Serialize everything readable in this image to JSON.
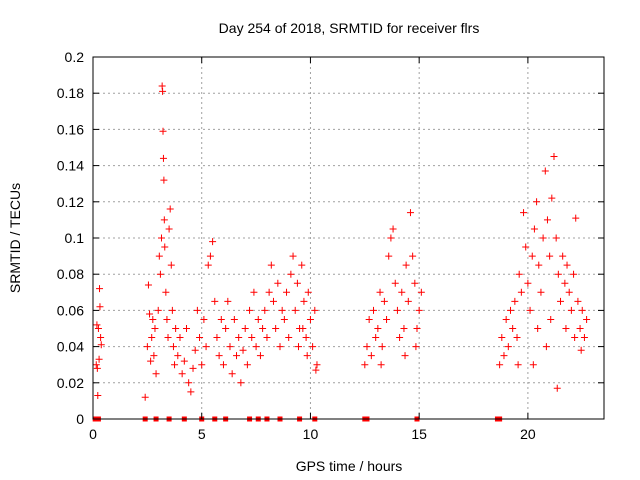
{
  "chart_data": {
    "type": "scatter",
    "title": "Day 254 of 2018, SRMTID for receiver flrs",
    "xlabel": "GPS time / hours",
    "ylabel": "SRMTID / TECUs",
    "xlim": [
      0,
      23.5
    ],
    "ylim": [
      0,
      0.2
    ],
    "x_ticks": [
      0,
      5,
      10,
      15,
      20
    ],
    "x_tick_labels": [
      "0",
      "5",
      "10",
      "15",
      "20"
    ],
    "y_ticks": [
      0,
      0.02,
      0.04,
      0.06,
      0.08,
      0.1,
      0.12,
      0.14,
      0.16,
      0.18,
      0.2
    ],
    "y_tick_labels": [
      "0",
      "0.02",
      "0.04",
      "0.06",
      "0.08",
      "0.1",
      "0.12",
      "0.14",
      "0.16",
      "0.18",
      "0.2"
    ],
    "grid": true,
    "marker": "+",
    "color": "#ff0000",
    "zero_markers_x": [
      0.1,
      0.25,
      2.4,
      2.9,
      3.5,
      4.2,
      5.0,
      5.6,
      6.1,
      7.2,
      7.6,
      8.0,
      8.6,
      9.5,
      10.2,
      12.5,
      12.6,
      14.9,
      18.6,
      18.7
    ],
    "series": [
      {
        "name": "SRMTID",
        "points": [
          [
            0.15,
            0.03
          ],
          [
            0.2,
            0.028
          ],
          [
            0.25,
            0.05
          ],
          [
            0.3,
            0.072
          ],
          [
            0.32,
            0.062
          ],
          [
            0.35,
            0.045
          ],
          [
            0.38,
            0.041
          ],
          [
            0.22,
            0.013
          ],
          [
            0.28,
            0.033
          ],
          [
            0.18,
            0.052
          ],
          [
            2.4,
            0.012
          ],
          [
            2.5,
            0.04
          ],
          [
            2.55,
            0.074
          ],
          [
            2.6,
            0.058
          ],
          [
            2.65,
            0.032
          ],
          [
            2.7,
            0.045
          ],
          [
            2.75,
            0.055
          ],
          [
            2.8,
            0.035
          ],
          [
            2.85,
            0.05
          ],
          [
            2.9,
            0.025
          ],
          [
            3.0,
            0.06
          ],
          [
            3.05,
            0.09
          ],
          [
            3.1,
            0.08
          ],
          [
            3.15,
            0.1
          ],
          [
            3.18,
            0.184
          ],
          [
            3.2,
            0.181
          ],
          [
            3.22,
            0.159
          ],
          [
            3.24,
            0.144
          ],
          [
            3.26,
            0.132
          ],
          [
            3.28,
            0.11
          ],
          [
            3.3,
            0.095
          ],
          [
            3.35,
            0.07
          ],
          [
            3.4,
            0.055
          ],
          [
            3.45,
            0.045
          ],
          [
            3.5,
            0.105
          ],
          [
            3.55,
            0.116
          ],
          [
            3.6,
            0.085
          ],
          [
            3.65,
            0.06
          ],
          [
            3.7,
            0.04
          ],
          [
            3.75,
            0.03
          ],
          [
            3.8,
            0.05
          ],
          [
            3.9,
            0.035
          ],
          [
            4.0,
            0.045
          ],
          [
            4.1,
            0.025
          ],
          [
            4.2,
            0.032
          ],
          [
            4.3,
            0.05
          ],
          [
            4.4,
            0.02
          ],
          [
            4.5,
            0.015
          ],
          [
            4.6,
            0.028
          ],
          [
            4.7,
            0.038
          ],
          [
            4.8,
            0.06
          ],
          [
            4.9,
            0.045
          ],
          [
            5.0,
            0.03
          ],
          [
            5.1,
            0.055
          ],
          [
            5.2,
            0.04
          ],
          [
            5.3,
            0.085
          ],
          [
            5.4,
            0.09
          ],
          [
            5.5,
            0.098
          ],
          [
            5.6,
            0.065
          ],
          [
            5.7,
            0.045
          ],
          [
            5.8,
            0.035
          ],
          [
            5.9,
            0.055
          ],
          [
            6.0,
            0.03
          ],
          [
            6.1,
            0.05
          ],
          [
            6.2,
            0.065
          ],
          [
            6.3,
            0.04
          ],
          [
            6.4,
            0.025
          ],
          [
            6.5,
            0.055
          ],
          [
            6.6,
            0.035
          ],
          [
            6.7,
            0.045
          ],
          [
            6.8,
            0.02
          ],
          [
            6.9,
            0.038
          ],
          [
            7.0,
            0.05
          ],
          [
            7.1,
            0.03
          ],
          [
            7.2,
            0.06
          ],
          [
            7.3,
            0.045
          ],
          [
            7.4,
            0.07
          ],
          [
            7.5,
            0.04
          ],
          [
            7.6,
            0.055
          ],
          [
            7.7,
            0.035
          ],
          [
            7.8,
            0.05
          ],
          [
            7.9,
            0.06
          ],
          [
            8.0,
            0.045
          ],
          [
            8.1,
            0.07
          ],
          [
            8.2,
            0.085
          ],
          [
            8.3,
            0.065
          ],
          [
            8.4,
            0.05
          ],
          [
            8.5,
            0.075
          ],
          [
            8.6,
            0.04
          ],
          [
            8.7,
            0.06
          ],
          [
            8.8,
            0.055
          ],
          [
            8.9,
            0.07
          ],
          [
            9.0,
            0.045
          ],
          [
            9.1,
            0.08
          ],
          [
            9.2,
            0.09
          ],
          [
            9.3,
            0.06
          ],
          [
            9.4,
            0.075
          ],
          [
            9.5,
            0.05
          ],
          [
            9.6,
            0.085
          ],
          [
            9.7,
            0.065
          ],
          [
            9.8,
            0.045
          ],
          [
            9.9,
            0.07
          ],
          [
            10.0,
            0.055
          ],
          [
            10.1,
            0.04
          ],
          [
            10.2,
            0.06
          ],
          [
            10.3,
            0.03
          ],
          [
            10.25,
            0.027
          ],
          [
            9.85,
            0.035
          ],
          [
            9.65,
            0.05
          ],
          [
            9.45,
            0.04
          ],
          [
            12.5,
            0.03
          ],
          [
            12.6,
            0.04
          ],
          [
            12.7,
            0.055
          ],
          [
            12.8,
            0.035
          ],
          [
            12.9,
            0.06
          ],
          [
            13.0,
            0.045
          ],
          [
            13.1,
            0.05
          ],
          [
            13.2,
            0.07
          ],
          [
            13.3,
            0.04
          ],
          [
            13.4,
            0.065
          ],
          [
            13.5,
            0.055
          ],
          [
            13.6,
            0.09
          ],
          [
            13.7,
            0.1
          ],
          [
            13.8,
            0.105
          ],
          [
            13.9,
            0.075
          ],
          [
            14.0,
            0.06
          ],
          [
            14.1,
            0.045
          ],
          [
            14.2,
            0.07
          ],
          [
            14.3,
            0.05
          ],
          [
            14.4,
            0.085
          ],
          [
            14.5,
            0.065
          ],
          [
            14.6,
            0.114
          ],
          [
            14.7,
            0.09
          ],
          [
            14.8,
            0.075
          ],
          [
            14.9,
            0.05
          ],
          [
            15.0,
            0.06
          ],
          [
            15.1,
            0.07
          ],
          [
            13.25,
            0.03
          ],
          [
            14.35,
            0.035
          ],
          [
            14.85,
            0.04
          ],
          [
            18.7,
            0.03
          ],
          [
            18.8,
            0.045
          ],
          [
            18.9,
            0.035
          ],
          [
            19.0,
            0.055
          ],
          [
            19.1,
            0.04
          ],
          [
            19.2,
            0.06
          ],
          [
            19.3,
            0.05
          ],
          [
            19.4,
            0.065
          ],
          [
            19.5,
            0.045
          ],
          [
            19.6,
            0.08
          ],
          [
            19.7,
            0.07
          ],
          [
            19.8,
            0.114
          ],
          [
            19.9,
            0.095
          ],
          [
            20.0,
            0.075
          ],
          [
            20.1,
            0.06
          ],
          [
            20.2,
            0.09
          ],
          [
            20.3,
            0.105
          ],
          [
            20.4,
            0.12
          ],
          [
            20.5,
            0.085
          ],
          [
            20.6,
            0.07
          ],
          [
            20.7,
            0.1
          ],
          [
            20.8,
            0.137
          ],
          [
            20.9,
            0.11
          ],
          [
            21.0,
            0.09
          ],
          [
            21.1,
            0.122
          ],
          [
            21.2,
            0.145
          ],
          [
            21.3,
            0.1
          ],
          [
            21.4,
            0.08
          ],
          [
            21.5,
            0.065
          ],
          [
            21.6,
            0.09
          ],
          [
            21.7,
            0.075
          ],
          [
            21.8,
            0.085
          ],
          [
            21.9,
            0.07
          ],
          [
            22.0,
            0.06
          ],
          [
            22.1,
            0.08
          ],
          [
            22.2,
            0.111
          ],
          [
            22.3,
            0.065
          ],
          [
            22.4,
            0.05
          ],
          [
            22.5,
            0.06
          ],
          [
            22.6,
            0.045
          ],
          [
            22.7,
            0.055
          ],
          [
            21.35,
            0.017
          ],
          [
            20.25,
            0.03
          ],
          [
            19.55,
            0.03
          ],
          [
            21.75,
            0.05
          ],
          [
            22.15,
            0.045
          ],
          [
            20.85,
            0.04
          ],
          [
            22.45,
            0.038
          ],
          [
            21.05,
            0.055
          ],
          [
            20.45,
            0.05
          ]
        ]
      }
    ]
  }
}
